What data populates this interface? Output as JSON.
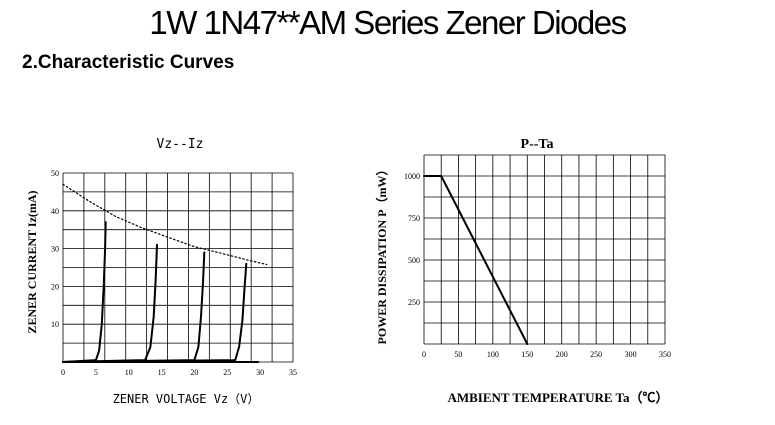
{
  "page": {
    "title": "1W 1N47**AM Series Zener Diodes",
    "section_heading": "2.Characteristic Curves"
  },
  "chart_data": [
    {
      "type": "line",
      "title": "Vz--Iz",
      "xlabel": "ZENER VOLTAGE   Vz（V）",
      "ylabel": "ZENER CURRENT Iz(mA)",
      "xlim": [
        0,
        35
      ],
      "ylim": [
        0,
        50
      ],
      "xticks": [
        "0",
        "5",
        "10",
        "15",
        "20",
        "25",
        "30",
        "35"
      ],
      "yticks": [
        "10",
        "20",
        "30",
        "40",
        "50"
      ],
      "grid": true,
      "series": [
        {
          "style": "solid",
          "x": [
            0,
            5.0,
            5.5,
            5.9,
            6.2,
            6.4,
            6.5
          ],
          "y": [
            0,
            0.5,
            3,
            10,
            20,
            30,
            37
          ]
        },
        {
          "style": "solid",
          "x": [
            0,
            12.5,
            13.3,
            13.8,
            14.1,
            14.3
          ],
          "y": [
            0,
            0.5,
            4,
            12,
            22,
            31
          ]
        },
        {
          "style": "solid",
          "x": [
            0,
            20.0,
            20.6,
            21.0,
            21.3,
            21.5
          ],
          "y": [
            0,
            0.5,
            4,
            12,
            21,
            29
          ]
        },
        {
          "style": "solid",
          "x": [
            0,
            26.2,
            26.8,
            27.3,
            27.6,
            27.9
          ],
          "y": [
            0,
            0.5,
            4,
            11,
            19,
            26
          ]
        },
        {
          "style": "solid",
          "x": [
            0,
            29.7
          ],
          "y": [
            0,
            0
          ]
        },
        {
          "style": "dotted",
          "x": [
            0,
            4,
            8,
            12,
            16,
            20,
            24,
            28,
            31
          ],
          "y": [
            47,
            42.5,
            38.5,
            35.5,
            33,
            30.5,
            28.8,
            27,
            25.8
          ]
        }
      ]
    },
    {
      "type": "line",
      "title": "P--Ta",
      "xlabel": "AMBIENT TEMPERATURE  Ta（℃）",
      "ylabel": "POWER   DISSIPATION  P（mW）",
      "xlim": [
        0,
        350
      ],
      "ylim": [
        0,
        1125
      ],
      "xticks": [
        "0",
        "50",
        "100",
        "150",
        "200",
        "250",
        "300",
        "350"
      ],
      "yticks": [
        "250",
        "500",
        "750",
        "1000"
      ],
      "grid": true,
      "series": [
        {
          "style": "solid",
          "x": [
            0,
            25,
            150
          ],
          "y": [
            1000,
            1000,
            0
          ]
        }
      ]
    }
  ]
}
